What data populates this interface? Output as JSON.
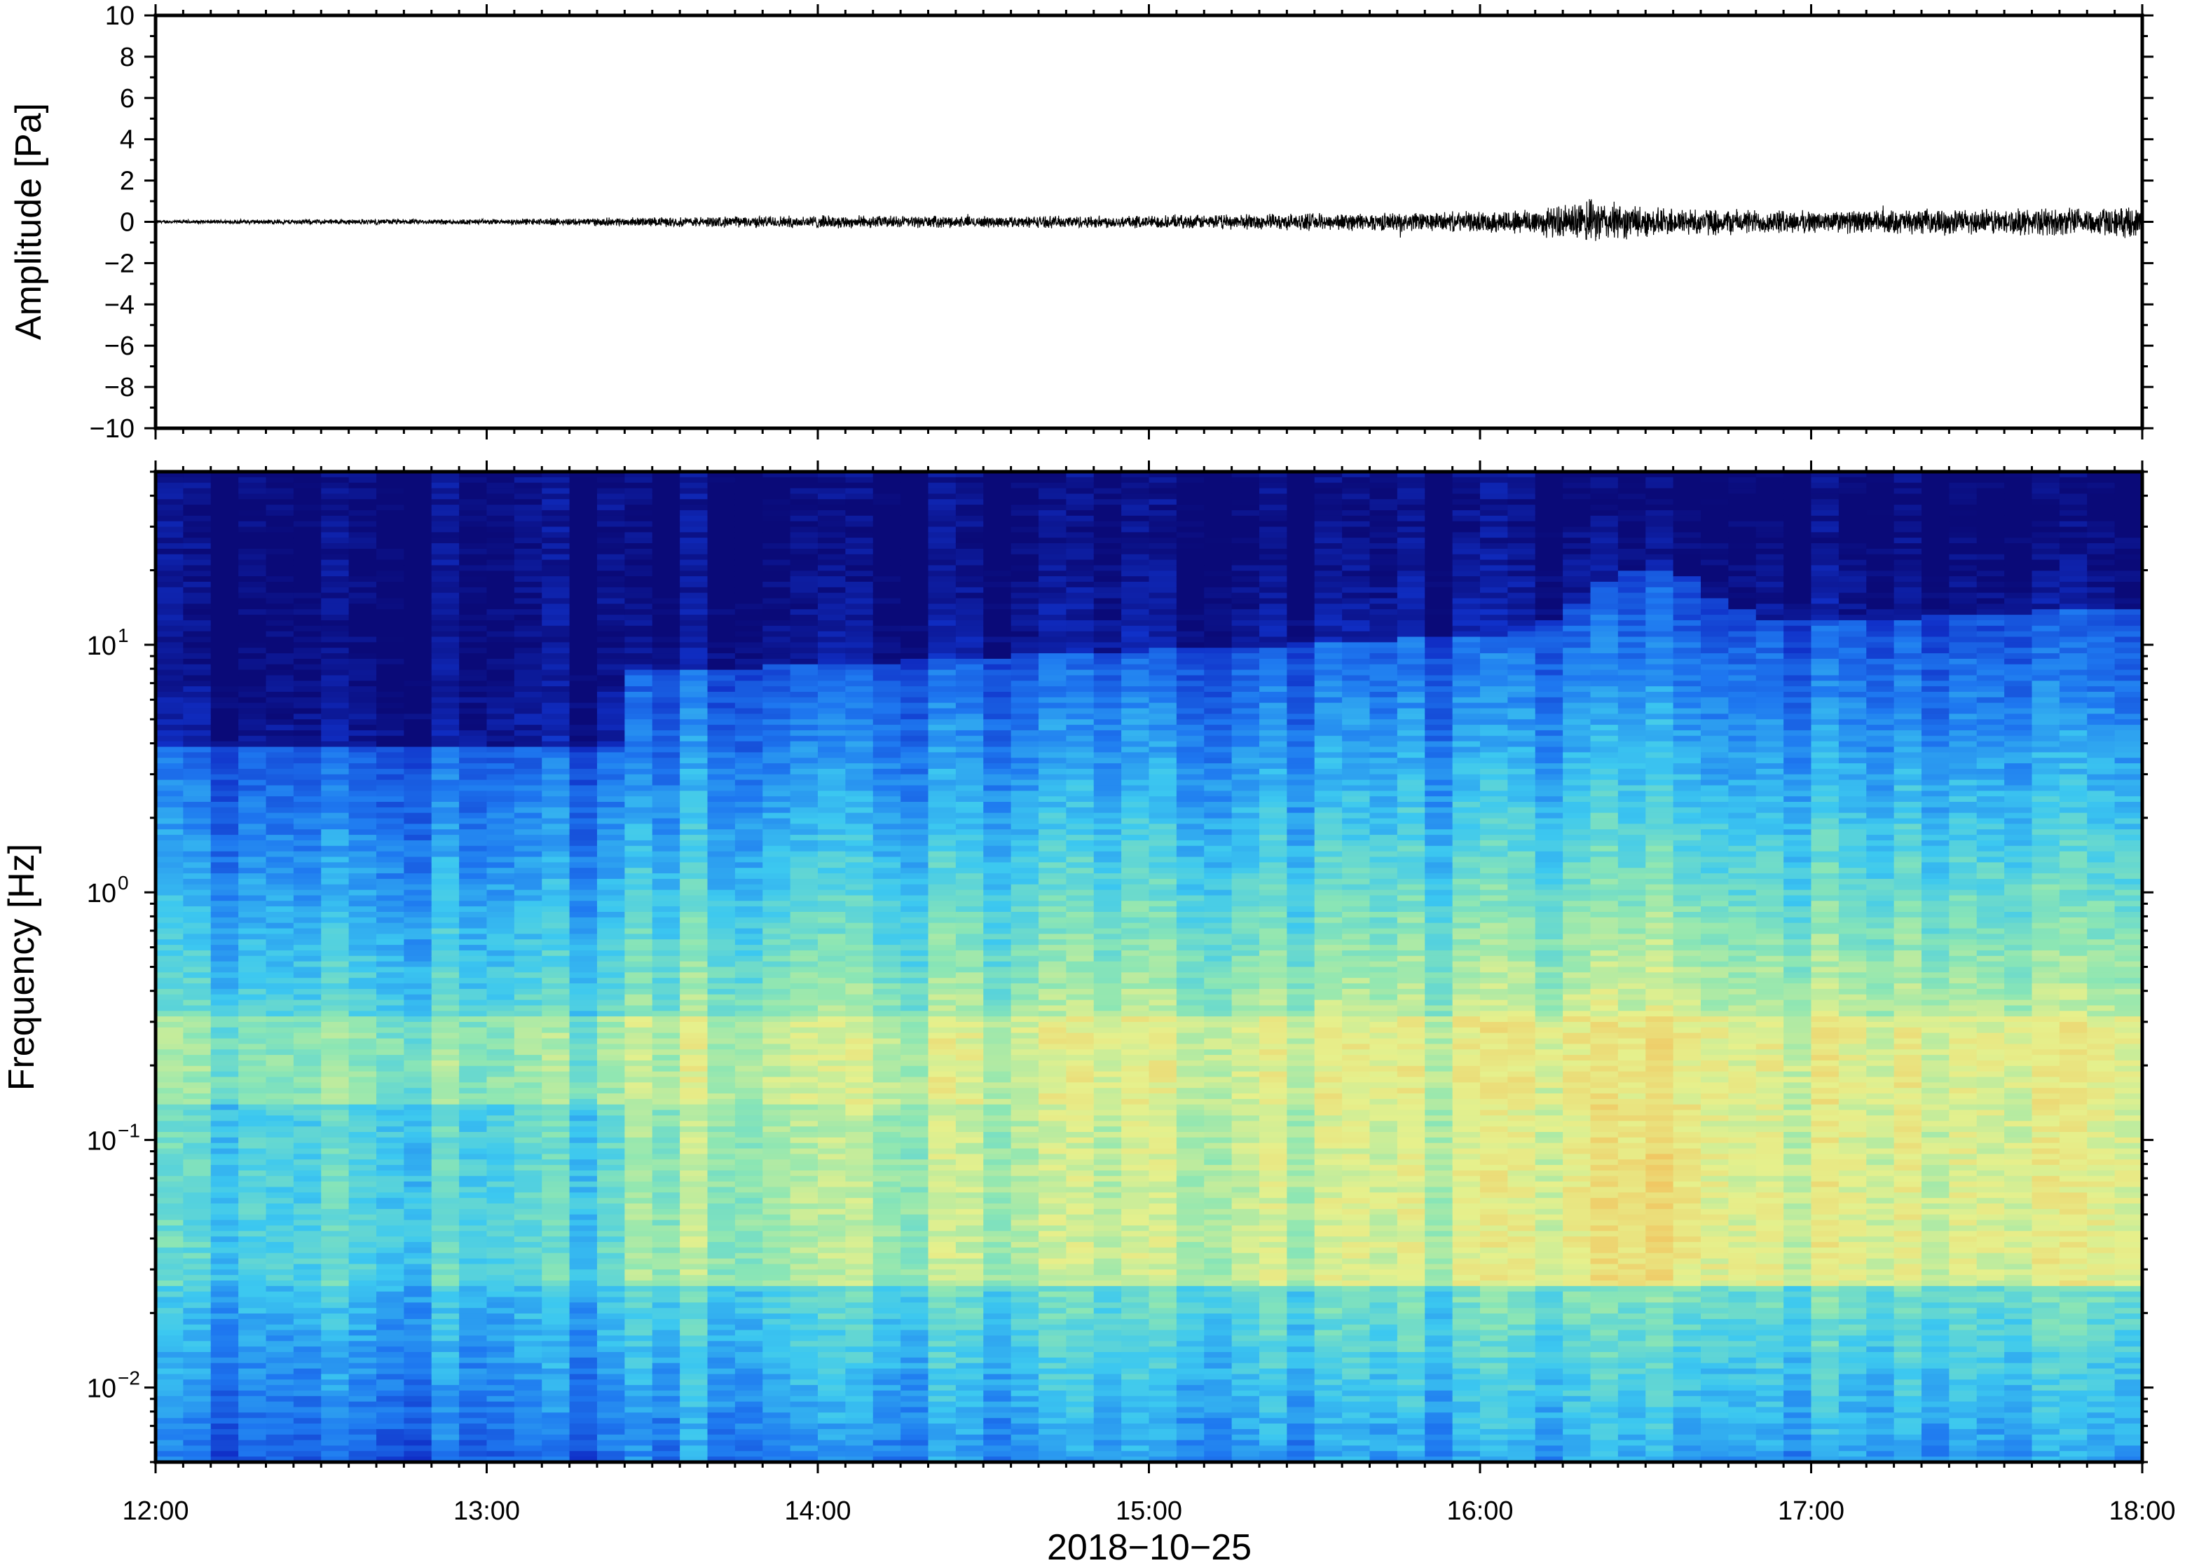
{
  "chart_data": [
    {
      "type": "line",
      "panel": "waveform",
      "ylabel": "Amplitude [Pa]",
      "ylim": [
        -10,
        10
      ],
      "yticks": [
        10,
        8,
        6,
        4,
        2,
        0,
        -2,
        -4,
        -6,
        -8,
        -10
      ],
      "ytick_labels": [
        "10",
        "8",
        "6",
        "4",
        "2",
        "0",
        "−2",
        "−4",
        "−6",
        "−8",
        "−10"
      ],
      "x_range": [
        "12:00",
        "18:00"
      ],
      "series": [
        {
          "envelope": {
            "times": [
              "12:00",
              "12:30",
              "13:00",
              "13:30",
              "14:00",
              "14:30",
              "15:00",
              "15:30",
              "16:00",
              "16:15",
              "16:20",
              "16:30",
              "17:00",
              "17:30",
              "18:00"
            ],
            "amplitude": [
              0.1,
              0.15,
              0.15,
              0.25,
              0.35,
              0.3,
              0.35,
              0.45,
              0.55,
              0.9,
              1.2,
              0.8,
              0.6,
              0.7,
              0.8
            ]
          },
          "color": "#000000"
        }
      ],
      "grid": false
    },
    {
      "type": "heatmap",
      "panel": "spectrogram",
      "ylabel": "Frequency [Hz]",
      "yscale": "log",
      "ylim": [
        0.005,
        50
      ],
      "yticks": [
        {
          "base": "10",
          "exp": "1"
        },
        {
          "base": "10",
          "exp": "0"
        },
        {
          "base": "10",
          "exp": "−1"
        },
        {
          "base": "10",
          "exp": "−2"
        }
      ],
      "xlabel": "2018−10−25",
      "xtick_labels": [
        "12:00",
        "13:00",
        "14:00",
        "15:00",
        "16:00",
        "17:00",
        "18:00"
      ],
      "colormap": [
        "#0a0a78",
        "#1030c8",
        "#1e78f0",
        "#3cc8f0",
        "#8ce6b4",
        "#e6f08c",
        "#f0c864",
        "#f08c46"
      ],
      "grid": false
    }
  ]
}
